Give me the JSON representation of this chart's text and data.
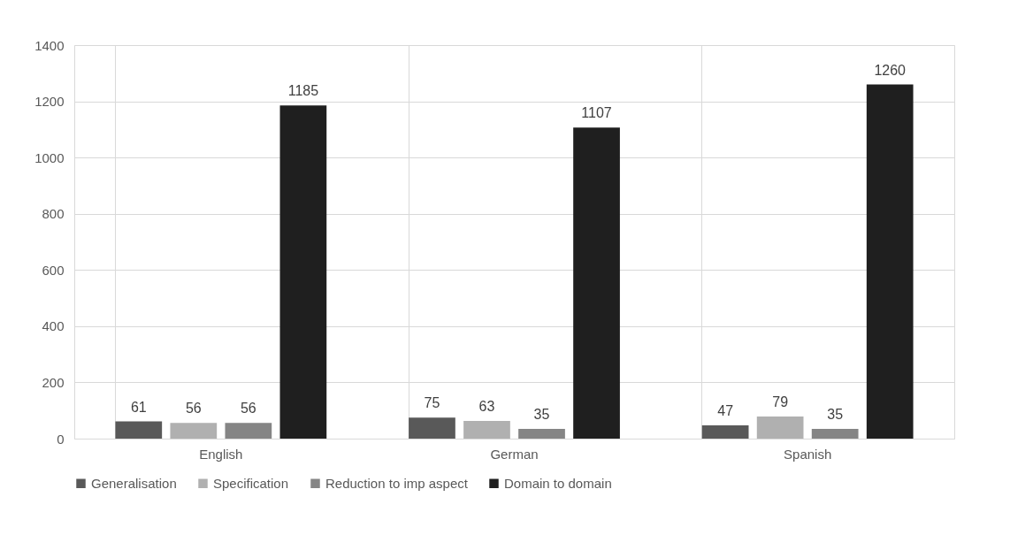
{
  "chart_data": {
    "type": "bar",
    "categories": [
      "English",
      "German",
      "Spanish"
    ],
    "series": [
      {
        "name": "Generalisation",
        "color": "#595959",
        "values": [
          61,
          75,
          47
        ]
      },
      {
        "name": "Specification",
        "color": "#b0b0b0",
        "values": [
          56,
          63,
          79
        ]
      },
      {
        "name": "Reduction to imp aspect",
        "color": "#858585",
        "values": [
          56,
          35,
          35
        ]
      },
      {
        "name": "Domain to domain",
        "color": "#1f1f1f",
        "values": [
          1185,
          1107,
          1260
        ]
      }
    ],
    "ylim": [
      0,
      1400
    ],
    "yticks": [
      0,
      200,
      400,
      600,
      800,
      1000,
      1200,
      1400
    ],
    "grid": true,
    "legend": "bottom",
    "data_labels": true
  }
}
